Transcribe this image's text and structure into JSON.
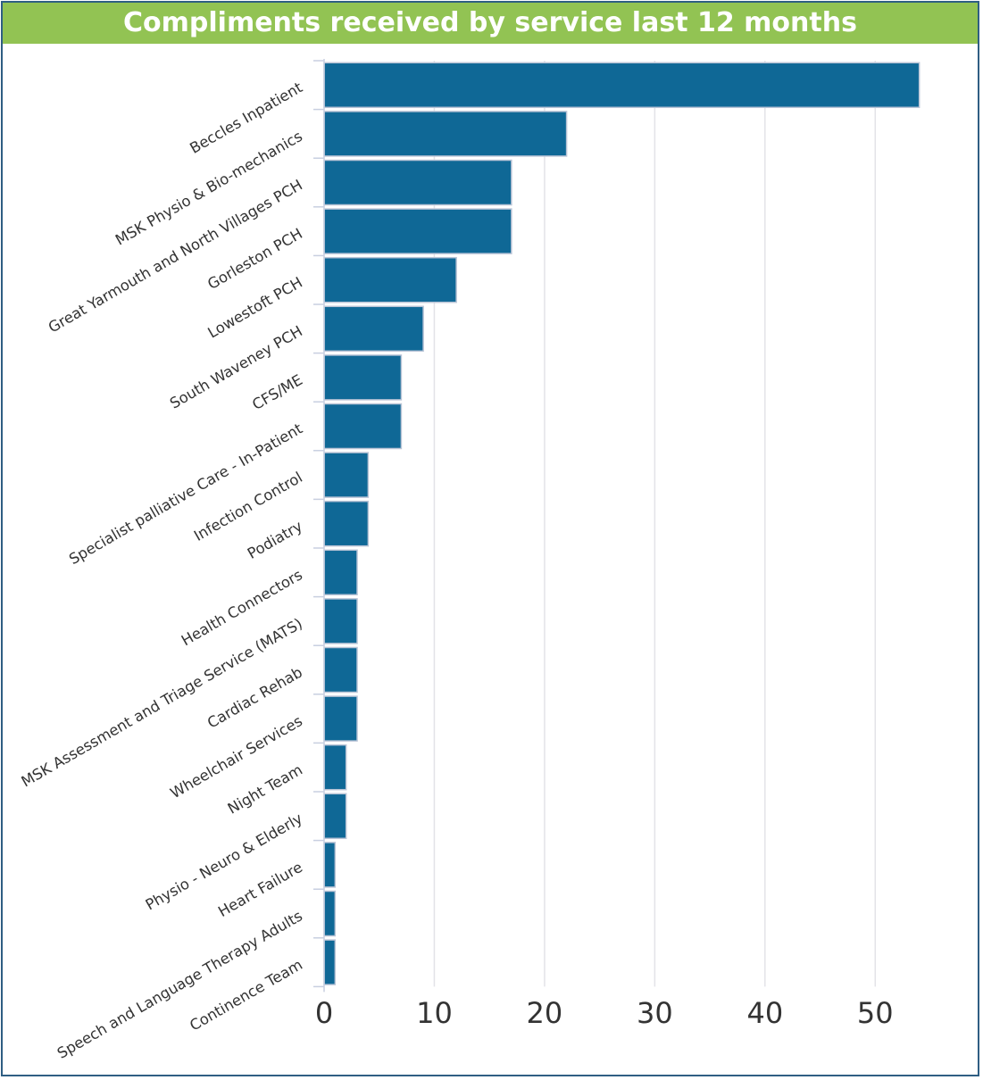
{
  "chart_data": {
    "type": "bar",
    "orientation": "horizontal",
    "title": "Compliments received by service last 12 months",
    "categories": [
      "Beccles Inpatient",
      "MSK Physio & Bio-mechanics",
      "Great Yarmouth and North Villages PCH",
      "Gorleston PCH",
      "Lowestoft PCH",
      "South Waveney PCH",
      "CFS/ME",
      "Specialist palliative Care - In-Patient",
      "Infection Control",
      "Podiatry",
      "Health Connectors",
      "MSK Assessment and Triage Service (MATS)",
      "Cardiac Rehab",
      "Wheelchair Services",
      "Night Team",
      "Physio - Neuro & Elderly",
      "Heart Failure",
      "Speech and Language Therapy Adults",
      "Continence Team"
    ],
    "values": [
      54,
      22,
      17,
      17,
      12,
      9,
      7,
      7,
      4,
      4,
      3,
      3,
      3,
      3,
      2,
      2,
      1,
      1,
      1
    ],
    "xlim": [
      0,
      55
    ],
    "xticks": [
      0,
      10,
      20,
      30,
      40,
      50
    ],
    "xlabel": "",
    "ylabel": "",
    "grid": true,
    "bar_color": "#0f6896",
    "title_bg": "#92c353"
  }
}
